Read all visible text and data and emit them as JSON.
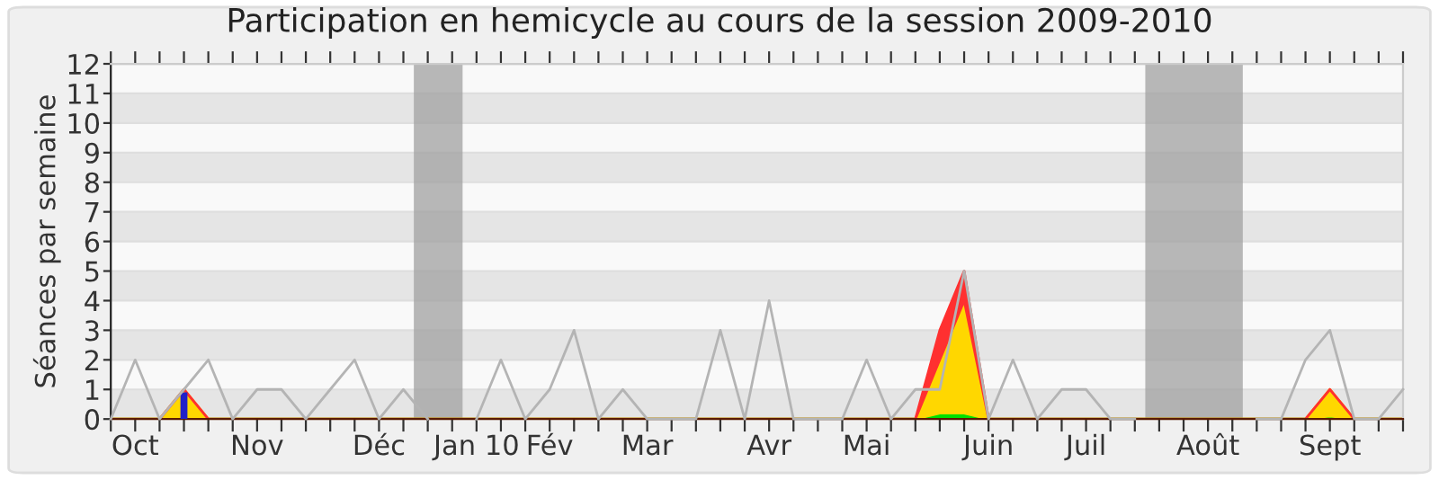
{
  "chart_data": {
    "type": "area",
    "title": "Participation en hemicycle au cours de la session 2009-2010",
    "ylabel": "Séances par semaine",
    "stacked": true,
    "grid": "y",
    "legend": false,
    "x": [
      "2009-09-28",
      "2009-10-05",
      "2009-10-12",
      "2009-10-19",
      "2009-10-26",
      "2009-11-02",
      "2009-11-09",
      "2009-11-16",
      "2009-11-23",
      "2009-11-30",
      "2009-12-07",
      "2009-12-14",
      "2009-12-21",
      "2009-12-28",
      "2010-01-04",
      "2010-01-11",
      "2010-01-18",
      "2010-01-25",
      "2010-02-01",
      "2010-02-08",
      "2010-02-15",
      "2010-02-22",
      "2010-03-01",
      "2010-03-08",
      "2010-03-15",
      "2010-03-22",
      "2010-03-29",
      "2010-04-05",
      "2010-04-12",
      "2010-04-19",
      "2010-04-26",
      "2010-05-03",
      "2010-05-10",
      "2010-05-17",
      "2010-05-24",
      "2010-05-31",
      "2010-06-07",
      "2010-06-14",
      "2010-06-21",
      "2010-06-28",
      "2010-07-05",
      "2010-07-12",
      "2010-07-19",
      "2010-07-26",
      "2010-08-02",
      "2010-08-09",
      "2010-08-16",
      "2010-08-23",
      "2010-08-30",
      "2010-09-06",
      "2010-09-13",
      "2010-09-20",
      "2010-09-27",
      "2010-10-04"
    ],
    "xlim": [
      "2009-09-28",
      "2010-10-04"
    ],
    "xticks": [
      {
        "value": "2009-09-28",
        "label": null
      },
      {
        "value": "2009-10-05",
        "label": "Oct"
      },
      {
        "value": "2009-10-12",
        "label": null
      },
      {
        "value": "2009-10-19",
        "label": null
      },
      {
        "value": "2009-10-26",
        "label": null
      },
      {
        "value": "2009-11-02",
        "label": null
      },
      {
        "value": "2009-11-09",
        "label": "Nov"
      },
      {
        "value": "2009-11-16",
        "label": null
      },
      {
        "value": "2009-11-23",
        "label": null
      },
      {
        "value": "2009-11-30",
        "label": null
      },
      {
        "value": "2009-12-07",
        "label": null
      },
      {
        "value": "2009-12-14",
        "label": "Déc"
      },
      {
        "value": "2009-12-21",
        "label": null
      },
      {
        "value": "2009-12-28",
        "label": null
      },
      {
        "value": "2010-01-04",
        "label": null
      },
      {
        "value": "2010-01-11",
        "label": "Jan 10"
      },
      {
        "value": "2010-01-18",
        "label": null
      },
      {
        "value": "2010-01-25",
        "label": null
      },
      {
        "value": "2010-02-01",
        "label": "Fév"
      },
      {
        "value": "2010-02-08",
        "label": null
      },
      {
        "value": "2010-02-15",
        "label": null
      },
      {
        "value": "2010-02-22",
        "label": null
      },
      {
        "value": "2010-03-01",
        "label": "Mar"
      },
      {
        "value": "2010-03-08",
        "label": null
      },
      {
        "value": "2010-03-15",
        "label": null
      },
      {
        "value": "2010-03-22",
        "label": null
      },
      {
        "value": "2010-03-29",
        "label": null
      },
      {
        "value": "2010-04-05",
        "label": "Avr"
      },
      {
        "value": "2010-04-12",
        "label": null
      },
      {
        "value": "2010-04-19",
        "label": null
      },
      {
        "value": "2010-04-26",
        "label": null
      },
      {
        "value": "2010-05-03",
        "label": "Mai"
      },
      {
        "value": "2010-05-10",
        "label": null
      },
      {
        "value": "2010-05-17",
        "label": null
      },
      {
        "value": "2010-05-24",
        "label": null
      },
      {
        "value": "2010-05-31",
        "label": null
      },
      {
        "value": "2010-06-07",
        "label": "Juin"
      },
      {
        "value": "2010-06-14",
        "label": null
      },
      {
        "value": "2010-06-21",
        "label": null
      },
      {
        "value": "2010-06-28",
        "label": null
      },
      {
        "value": "2010-07-05",
        "label": "Juil"
      },
      {
        "value": "2010-07-12",
        "label": null
      },
      {
        "value": "2010-07-19",
        "label": null
      },
      {
        "value": "2010-07-26",
        "label": null
      },
      {
        "value": "2010-08-02",
        "label": null
      },
      {
        "value": "2010-08-09",
        "label": "Août"
      },
      {
        "value": "2010-08-16",
        "label": null
      },
      {
        "value": "2010-08-23",
        "label": null
      },
      {
        "value": "2010-08-30",
        "label": null
      },
      {
        "value": "2010-09-06",
        "label": null
      },
      {
        "value": "2010-09-13",
        "label": "Sept"
      },
      {
        "value": "2010-09-20",
        "label": null
      },
      {
        "value": "2010-09-27",
        "label": null
      },
      {
        "value": "2010-10-04",
        "label": null
      }
    ],
    "bands": [
      {
        "axis": "x",
        "from": "2009-12-24",
        "to": "2010-01-07",
        "color": "#a0a0a0"
      },
      {
        "axis": "x",
        "from": "2010-07-22",
        "to": "2010-08-19",
        "color": "#a0a0a0"
      }
    ],
    "series": [
      {
        "color": "#00e000",
        "values": [
          0,
          0,
          0,
          0,
          0,
          0,
          0,
          0,
          0,
          0,
          0,
          0,
          0,
          0,
          0,
          0,
          0,
          0,
          0,
          0,
          0,
          0,
          0,
          0,
          0,
          0,
          0,
          0,
          0,
          0,
          0,
          0,
          0,
          0,
          0.2,
          0.2,
          0,
          0,
          0,
          0,
          0,
          0,
          0,
          0,
          0,
          0,
          0,
          0,
          0,
          0,
          0.1,
          0,
          0,
          0
        ]
      },
      {
        "color": "#ffd700",
        "values": [
          0,
          0,
          0,
          1,
          0,
          0,
          0,
          0,
          0,
          0,
          0,
          0,
          0,
          0,
          0,
          0,
          0,
          0,
          0,
          0,
          0,
          0,
          0,
          0,
          0,
          0,
          0,
          0,
          0,
          0,
          0,
          0,
          0,
          0,
          1.8,
          3.8,
          0,
          0,
          0,
          0,
          0,
          0,
          0,
          0,
          0,
          0,
          0,
          0,
          0,
          0,
          0.9,
          0,
          0,
          0
        ]
      },
      {
        "color": "#ff3030",
        "values": [
          0,
          0,
          0,
          0,
          0,
          0,
          0,
          0,
          0,
          0,
          0,
          0,
          0,
          0,
          0,
          0,
          0,
          0,
          0,
          0,
          0,
          0,
          0,
          0,
          0,
          0,
          0,
          0,
          0,
          0,
          0,
          0,
          0,
          0,
          1,
          1,
          0,
          0,
          0,
          0,
          0,
          0,
          0,
          0,
          0,
          0,
          0,
          0,
          0,
          0,
          0,
          0,
          0,
          0
        ]
      },
      {
        "type": "bar",
        "color": "#2020c8",
        "values": [
          0,
          0,
          0,
          0.9,
          0,
          0,
          0,
          0,
          0,
          0,
          0,
          0,
          0,
          0,
          0,
          0,
          0,
          0,
          0,
          0,
          0,
          0,
          0,
          0,
          0,
          0,
          0,
          0,
          0,
          0,
          0,
          0,
          0,
          0,
          0,
          0,
          0,
          0,
          0,
          0,
          0,
          0,
          0,
          0,
          0,
          0,
          0,
          0,
          0,
          0,
          0,
          0,
          0,
          0
        ]
      },
      {
        "type": "line",
        "color": "#b4b4b4",
        "values": [
          0,
          2,
          0,
          1,
          2,
          0,
          1,
          1,
          0,
          1,
          2,
          0,
          1,
          0,
          null,
          0,
          2,
          0,
          1,
          3,
          0,
          1,
          0,
          0,
          0,
          3,
          0,
          4,
          0,
          0,
          0,
          2,
          0,
          1,
          1,
          5,
          0,
          2,
          0,
          1,
          1,
          0,
          0,
          null,
          null,
          null,
          null,
          0,
          0,
          2,
          3,
          0,
          0,
          1
        ]
      }
    ],
    "ylim": [
      0,
      12
    ],
    "yticks": [
      0,
      1,
      2,
      3,
      4,
      5,
      6,
      7,
      8,
      9,
      10,
      11,
      12
    ]
  }
}
